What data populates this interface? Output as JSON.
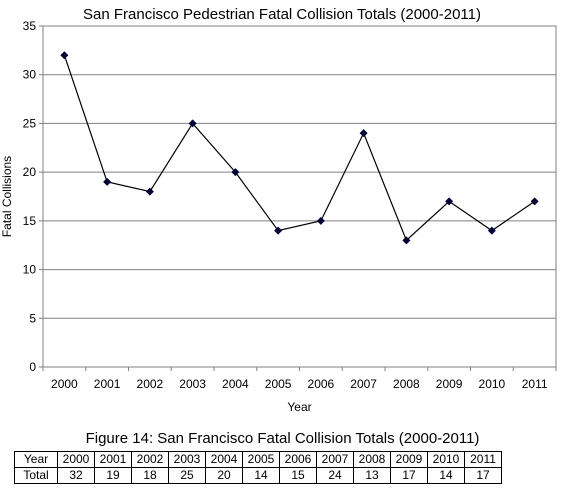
{
  "chart_data": {
    "type": "line",
    "title": "San Francisco Pedestrian Fatal Collision Totals (2000-2011)",
    "xlabel": "Year",
    "ylabel": "Fatal Collisions",
    "categories": [
      "2000",
      "2001",
      "2002",
      "2003",
      "2004",
      "2005",
      "2006",
      "2007",
      "2008",
      "2009",
      "2010",
      "2011"
    ],
    "values": [
      32,
      19,
      18,
      25,
      20,
      14,
      15,
      24,
      13,
      17,
      14,
      17
    ],
    "ylim": [
      0,
      35
    ],
    "yticks": [
      "0",
      "5",
      "10",
      "15",
      "20",
      "25",
      "30",
      "35"
    ],
    "grid": true,
    "legend": "none",
    "series_color": "#000000",
    "marker_color": "#000033",
    "marker": "diamond"
  },
  "caption": "Figure 14: San Francisco Fatal Collision Totals (2000-2011)",
  "table": {
    "row_headers": [
      "Year",
      "Total"
    ],
    "years": [
      "2000",
      "2001",
      "2002",
      "2003",
      "2004",
      "2005",
      "2006",
      "2007",
      "2008",
      "2009",
      "2010",
      "2011"
    ],
    "totals": [
      "32",
      "19",
      "18",
      "25",
      "20",
      "14",
      "15",
      "24",
      "13",
      "17",
      "14",
      "17"
    ]
  }
}
